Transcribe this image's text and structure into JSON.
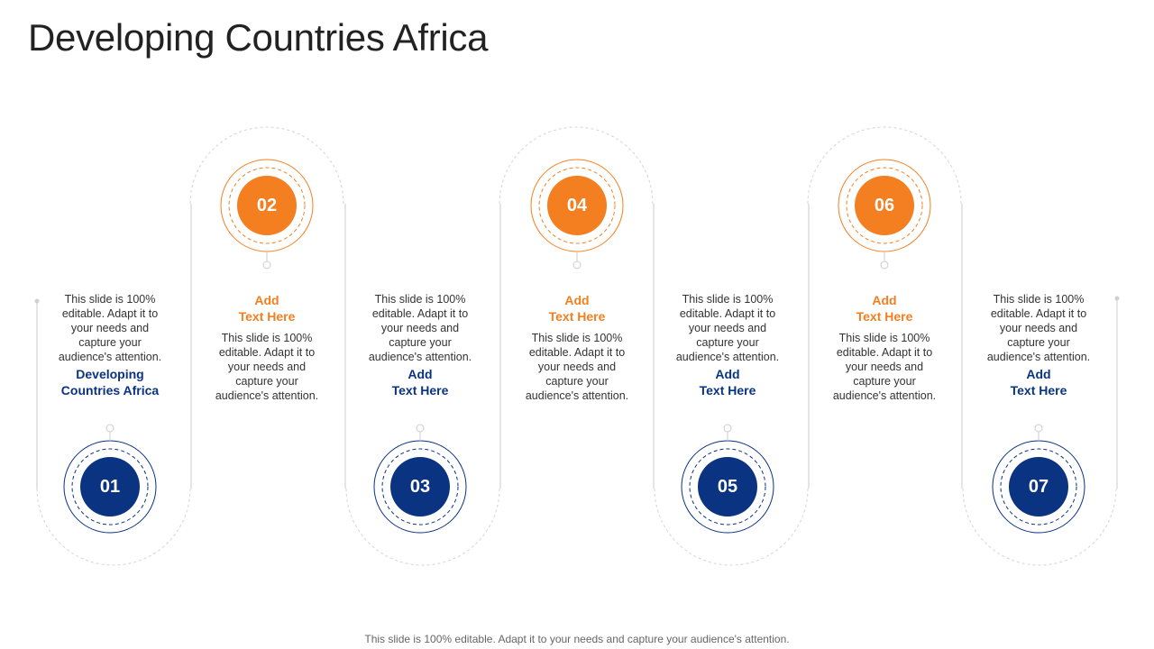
{
  "title": "Developing Countries Africa",
  "footer": "This slide is 100% editable. Adapt it to your needs and capture your audience's attention.",
  "colors": {
    "blue": "#0a3381",
    "orange": "#f47f20",
    "dashed": "#d0d0d0"
  },
  "steps": [
    {
      "number": "01",
      "heading_line1": "Developing",
      "heading_line2": "Countries Africa",
      "desc_lines": [
        "This slide is 100%",
        "editable. Adapt it to",
        "your needs and",
        "capture your",
        "audience's attention."
      ]
    },
    {
      "number": "02",
      "heading_line1": "Add",
      "heading_line2": "Text Here",
      "desc_lines": [
        "This slide is 100%",
        "editable. Adapt it to",
        "your needs and",
        "capture your",
        "audience's attention."
      ]
    },
    {
      "number": "03",
      "heading_line1": "Add",
      "heading_line2": "Text Here",
      "desc_lines": [
        "This slide is 100%",
        "editable. Adapt it to",
        "your needs and",
        "capture your",
        "audience's attention."
      ]
    },
    {
      "number": "04",
      "heading_line1": "Add",
      "heading_line2": "Text Here",
      "desc_lines": [
        "This slide is 100%",
        "editable. Adapt it to",
        "your needs and",
        "capture your",
        "audience's attention."
      ]
    },
    {
      "number": "05",
      "heading_line1": "Add",
      "heading_line2": "Text Here",
      "desc_lines": [
        "This slide is 100%",
        "editable. Adapt it to",
        "your needs and",
        "capture your",
        "audience's attention."
      ]
    },
    {
      "number": "06",
      "heading_line1": "Add",
      "heading_line2": "Text Here",
      "desc_lines": [
        "This slide is 100%",
        "editable. Adapt it to",
        "your needs and",
        "capture your",
        "audience's attention."
      ]
    },
    {
      "number": "07",
      "heading_line1": "Add",
      "heading_line2": "Text Here",
      "desc_lines": [
        "This slide is 100%",
        "editable. Adapt it to",
        "your needs and",
        "capture your",
        "audience's attention."
      ]
    }
  ]
}
